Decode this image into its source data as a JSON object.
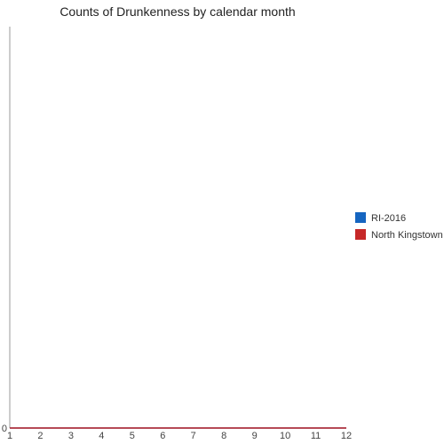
{
  "chart_data": {
    "type": "line",
    "title": "Counts of Drunkenness by calendar month",
    "xlabel": "",
    "ylabel": "",
    "x": [
      1,
      2,
      3,
      4,
      5,
      6,
      7,
      8,
      9,
      10,
      11,
      12
    ],
    "x_tick_labels": [
      "1",
      "2",
      "3",
      "4",
      "5",
      "6",
      "7",
      "8",
      "9",
      "10",
      "11",
      "12"
    ],
    "y_tick_labels": [
      "0"
    ],
    "xlim": [
      1,
      12
    ],
    "ylim": [
      0,
      1
    ],
    "grid": false,
    "legend_position": "right",
    "series": [
      {
        "name": "RI-2016",
        "color": "#1565c0",
        "values": [
          0,
          0,
          0,
          0,
          0,
          0,
          0,
          0,
          0,
          0,
          0,
          0
        ]
      },
      {
        "name": "North Kingstown",
        "color": "#c62828",
        "values": [
          0,
          0,
          0,
          0,
          0,
          0,
          0,
          0,
          0,
          0,
          0,
          0
        ]
      }
    ]
  }
}
